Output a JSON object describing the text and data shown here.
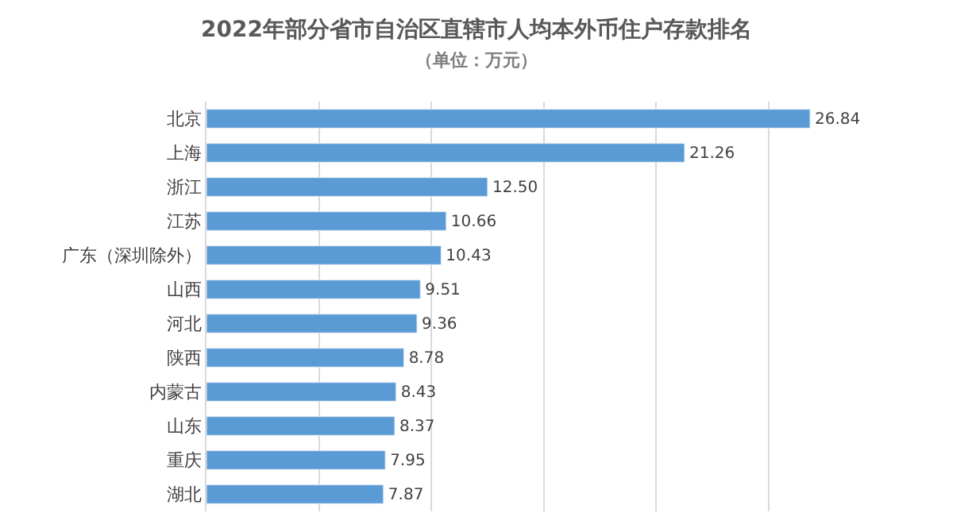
{
  "chart_data": {
    "type": "bar",
    "orientation": "horizontal",
    "title": "2022年部分省市自治区直辖市人均本外币住户存款排名",
    "subtitle": "（单位：万元）",
    "categories": [
      "北京",
      "上海",
      "浙江",
      "江苏",
      "广东（深圳除外）",
      "山西",
      "河北",
      "陕西",
      "内蒙古",
      "山东",
      "重庆",
      "湖北"
    ],
    "values": [
      26.84,
      21.26,
      12.5,
      10.66,
      10.43,
      9.51,
      9.36,
      8.78,
      8.43,
      8.37,
      7.95,
      7.87
    ],
    "value_labels": [
      "26.84",
      "21.26",
      "12.50",
      "10.66",
      "10.43",
      "9.51",
      "9.36",
      "8.78",
      "8.43",
      "8.37",
      "7.95",
      "7.87"
    ],
    "color": "#5b9bd5",
    "grid": "x",
    "tick_labels": "y"
  }
}
